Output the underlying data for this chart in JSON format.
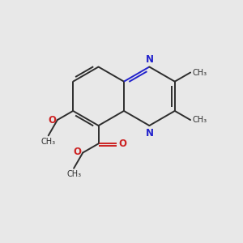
{
  "background_color": "#e8e8e8",
  "bond_color": "#2d2d2d",
  "nitrogen_color": "#2222cc",
  "oxygen_color": "#cc2222",
  "fig_width": 3.0,
  "fig_height": 3.0,
  "dpi": 100,
  "lw": 1.4,
  "xlim": [
    0,
    10
  ],
  "ylim": [
    0,
    10
  ],
  "r_ring": 1.22,
  "xmid": 5.1,
  "ymid": 6.05
}
